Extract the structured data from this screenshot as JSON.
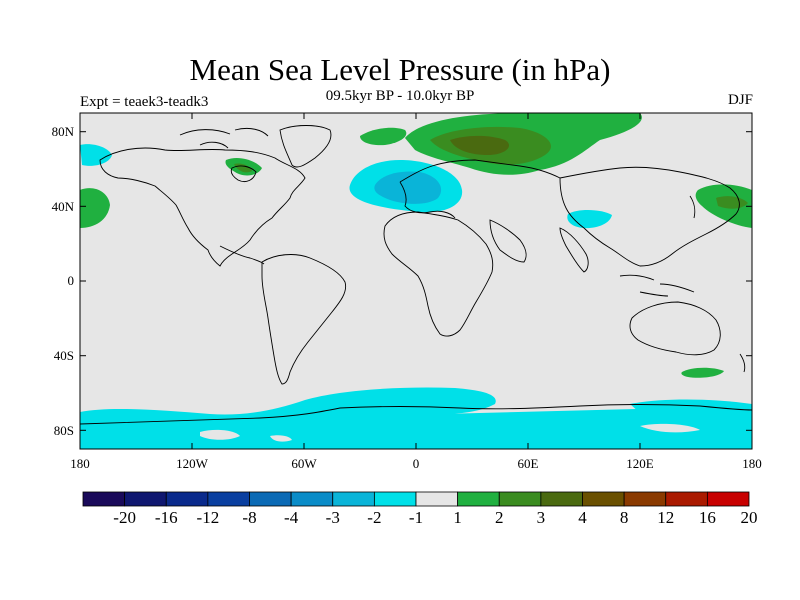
{
  "header": {
    "title": "Mean Sea Level Pressure (in hPa)",
    "subtitle": "09.5kyr BP - 10.0kyr BP",
    "experiment": "Expt = teaek3-teadk3",
    "season": "DJF"
  },
  "axes": {
    "lat_labels": [
      "80N",
      "40N",
      "0",
      "40S",
      "80S"
    ],
    "lon_labels": [
      "180",
      "120W",
      "60W",
      "0",
      "60E",
      "120E",
      "180"
    ]
  },
  "colorbar": {
    "labels": [
      "-20",
      "-16",
      "-12",
      "-8",
      "-4",
      "-3",
      "-2",
      "-1",
      "1",
      "2",
      "3",
      "4",
      "8",
      "12",
      "16",
      "20"
    ],
    "colors": [
      "#1a0a5a",
      "#0f1770",
      "#0a2a8c",
      "#0a3fa0",
      "#0b6ab5",
      "#0a8cc8",
      "#0ab4d8",
      "#00e0e8",
      "#e6e6e6",
      "#20b040",
      "#3a8c20",
      "#4a6a10",
      "#6a5000",
      "#8a3a00",
      "#aa1a00",
      "#c80000"
    ]
  },
  "chart_data": {
    "type": "heatmap",
    "title": "Mean Sea Level Pressure (in hPa)",
    "subtitle": "09.5kyr BP - 10.0kyr BP",
    "variable": "Mean Sea Level Pressure difference",
    "units": "hPa",
    "season": "DJF",
    "experiment": "teaek3-teadk3",
    "lon_range": [
      -180,
      180
    ],
    "lat_range": [
      -90,
      90
    ],
    "levels": [
      -20,
      -16,
      -12,
      -8,
      -4,
      -3,
      -2,
      -1,
      1,
      2,
      3,
      4,
      8,
      12,
      16,
      20
    ],
    "background_range": [
      -1,
      1
    ],
    "regions": [
      {
        "area": "North Atlantic near UK / North Sea",
        "range": [
          -3,
          -1
        ]
      },
      {
        "area": "Arctic / Barents-Kara Sea / northern Siberia",
        "range": [
          1,
          3
        ]
      },
      {
        "area": "Northwest Pacific near Japan",
        "range": [
          1,
          3
        ]
      },
      {
        "area": "North Pacific / Alaska",
        "range": [
          -2,
          -1
        ]
      },
      {
        "area": "Arabian Sea / Middle East",
        "range": [
          -2,
          -1
        ]
      },
      {
        "area": "Southern Ocean / Antarctic coast",
        "range": [
          -2,
          -1
        ]
      },
      {
        "area": "South Pacific near New Zealand",
        "range": [
          1,
          2
        ]
      }
    ]
  }
}
